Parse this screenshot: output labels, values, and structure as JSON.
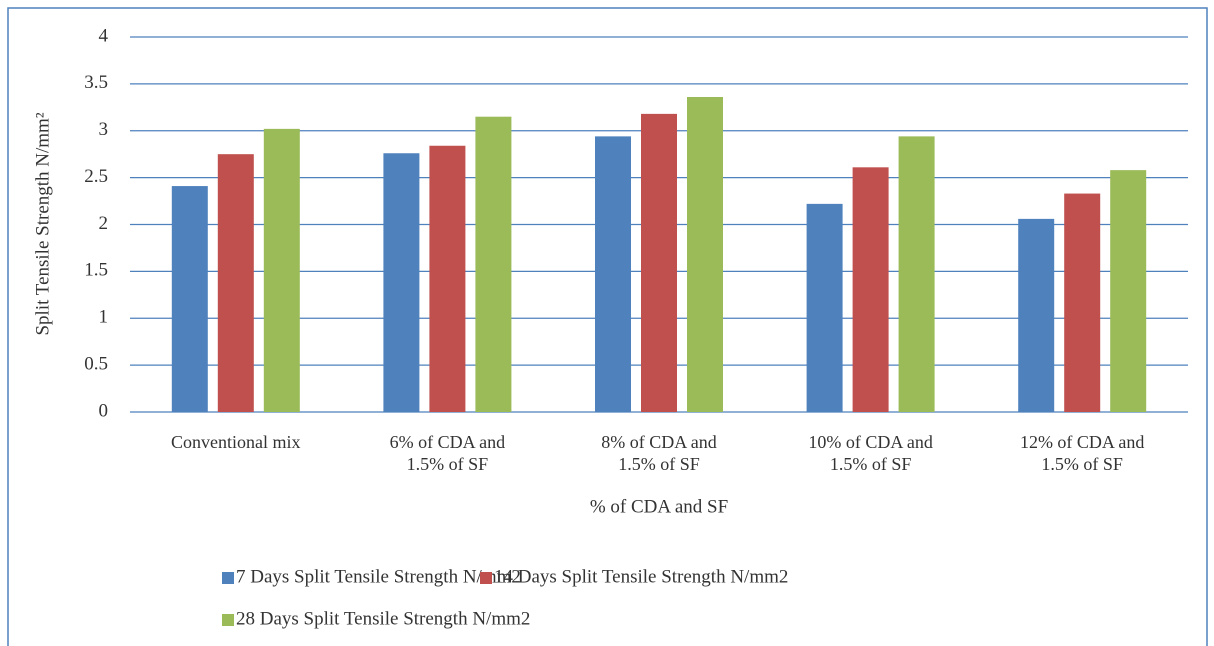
{
  "chart_data": {
    "type": "bar",
    "ylabel": "Split Tensile  Strength N/mm²",
    "xlabel": "% of CDA and SF",
    "categories": [
      "Conventional mix",
      "6% of CDA and 1.5% of SF",
      "8% of CDA and 1.5% of SF",
      "10% of CDA and 1.5% of SF",
      "12% of CDA and 1.5% of SF"
    ],
    "series": [
      {
        "name": "7 Days Split Tensile Strength N/mm2",
        "color": "#4f81bd",
        "values": [
          2.41,
          2.76,
          2.94,
          2.22,
          2.06
        ]
      },
      {
        "name": "14 Days Split Tensile Strength N/mm2",
        "color": "#c0504d",
        "values": [
          2.75,
          2.84,
          3.18,
          2.61,
          2.33
        ]
      },
      {
        "name": "28 Days Split Tensile Strength N/mm2",
        "color": "#9bbb59",
        "values": [
          3.02,
          3.15,
          3.36,
          2.94,
          2.58
        ]
      }
    ],
    "ylim": [
      0,
      4
    ],
    "yticks": [
      0,
      0.5,
      1,
      1.5,
      2,
      2.5,
      3,
      3.5,
      4
    ],
    "grid": true,
    "legend": "bottom"
  }
}
